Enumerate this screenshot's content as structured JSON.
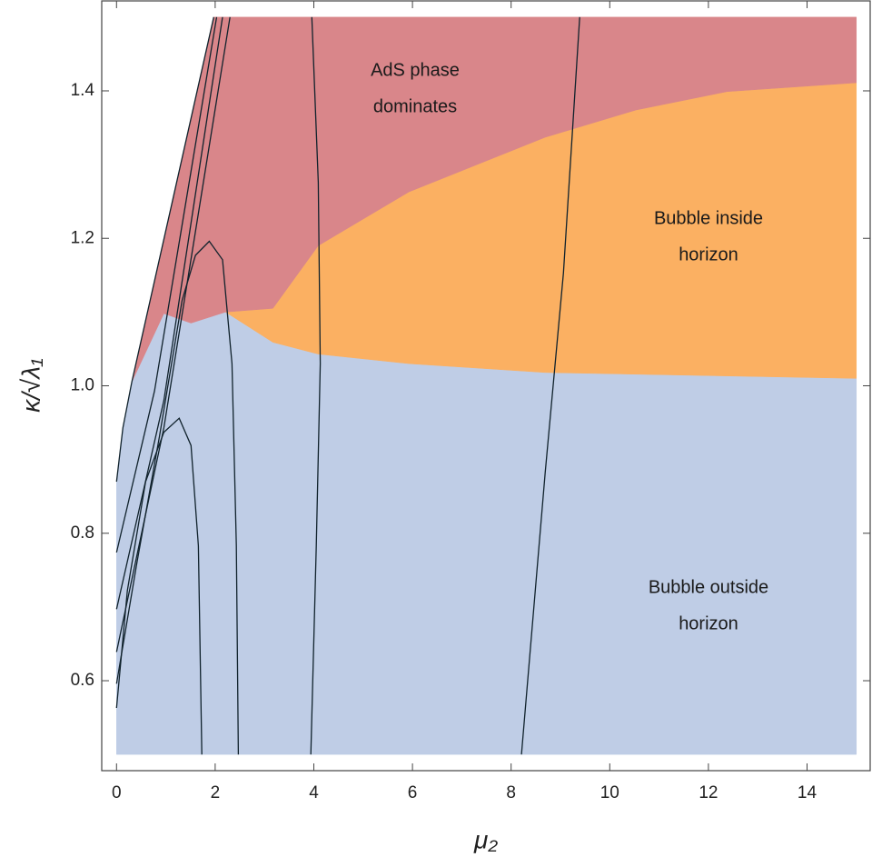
{
  "chart_data": {
    "type": "region",
    "x_label": "μ₂",
    "y_label": "κ/√λ₁",
    "xlim": [
      -0.3,
      15.28
    ],
    "ylim": [
      0.478,
      1.522
    ],
    "xticks": [
      0,
      2,
      4,
      6,
      8,
      10,
      12,
      14
    ],
    "yticks": [
      0.6,
      0.8,
      {
        "value": 1,
        "label": "1.0"
      },
      1.2,
      1.4
    ],
    "regions": [
      {
        "label": [
          "Bubble outside",
          "horizon"
        ],
        "color": "#bfcde6",
        "x": [
          0,
          15,
          15,
          8.69,
          5.93,
          4.09,
          3.17,
          2.21,
          1.51,
          0.96,
          0.31,
          0.13,
          0
        ],
        "y": [
          0.5,
          0.5,
          1.01,
          1.018,
          1.03,
          1.043,
          1.059,
          1.1,
          1.085,
          1.098,
          1.005,
          0.943,
          0.87
        ]
      },
      {
        "label": [
          "Bubble inside",
          "horizon"
        ],
        "color": "#fbb062",
        "x": [
          2.21,
          3.17,
          4.09,
          5.93,
          8.69,
          15,
          15,
          12.38,
          10.53,
          8.69,
          5.93,
          4.09,
          3.17
        ],
        "y": [
          1.1,
          1.059,
          1.043,
          1.03,
          1.018,
          1.01,
          1.411,
          1.399,
          1.374,
          1.337,
          1.263,
          1.19,
          1.105
        ]
      },
      {
        "label": [
          "AdS phase",
          "dominates"
        ],
        "color": "#d9868a",
        "x": [
          0.31,
          1.97,
          15,
          15,
          12.38,
          10.53,
          8.69,
          5.93,
          4.09,
          3.17,
          2.21,
          1.51,
          0.96
        ],
        "y": [
          1.005,
          1.5,
          1.5,
          1.411,
          1.399,
          1.374,
          1.337,
          1.263,
          1.19,
          1.105,
          1.1,
          1.085,
          1.098
        ]
      }
    ],
    "series": [
      {
        "color": "#10222c",
        "x": [
          0,
          0.13,
          0.31,
          1.97
        ],
        "y": [
          0.87,
          0.943,
          1.005,
          1.5
        ]
      },
      {
        "color": "#10222c",
        "x": [
          0,
          0.77,
          2.03
        ],
        "y": [
          0.774,
          0.993,
          1.5
        ]
      },
      {
        "color": "#10222c",
        "x": [
          0,
          0.96,
          2.15
        ],
        "y": [
          0.697,
          0.98,
          1.5
        ]
      },
      {
        "color": "#10222c",
        "x": [
          0,
          0.96,
          2.3
        ],
        "y": [
          0.639,
          0.943,
          1.5
        ]
      },
      {
        "color": "#10222c",
        "x": [
          0,
          0.41,
          0.87,
          1.33,
          1.6,
          1.88,
          2.15,
          2.34,
          2.43,
          2.47
        ],
        "y": [
          0.596,
          0.759,
          0.931,
          1.116,
          1.177,
          1.196,
          1.171,
          1.03,
          0.783,
          0.5
        ]
      },
      {
        "color": "#10222c",
        "x": [
          0,
          0.22,
          0.59,
          0.96,
          1.27,
          1.51,
          1.66,
          1.73
        ],
        "y": [
          0.563,
          0.722,
          0.87,
          0.937,
          0.956,
          0.919,
          0.783,
          0.5
        ]
      },
      {
        "color": "#10222c",
        "x": [
          3.94,
          4.05,
          4.13,
          4.09,
          3.96
        ],
        "y": [
          0.5,
          0.783,
          1.03,
          1.276,
          1.5
        ]
      },
      {
        "color": "#10222c",
        "x": [
          8.21,
          8.69,
          9.06,
          9.39
        ],
        "y": [
          0.5,
          0.882,
          1.153,
          1.5
        ]
      }
    ]
  }
}
